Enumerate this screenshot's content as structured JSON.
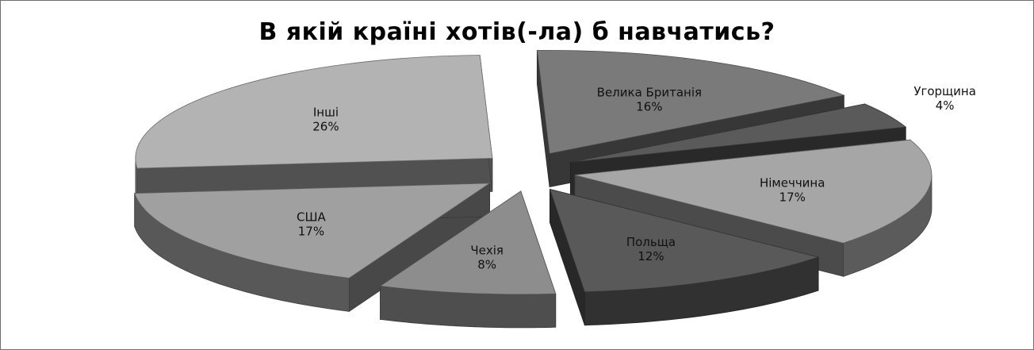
{
  "chart_data": {
    "type": "pie",
    "title": "В якій країні хотів(-ла) б навчатись?",
    "slices": [
      {
        "label": "Велика Британія",
        "value": 16,
        "value_label": "16%",
        "color": "#7a7a7a"
      },
      {
        "label": "Угорщина",
        "value": 4,
        "value_label": "4%",
        "color": "#5a5a5a"
      },
      {
        "label": "Німеччина",
        "value": 17,
        "value_label": "17%",
        "color": "#a6a6a6"
      },
      {
        "label": "Польща",
        "value": 12,
        "value_label": "12%",
        "color": "#595959"
      },
      {
        "label": "Чехія",
        "value": 8,
        "value_label": "8%",
        "color": "#8d8d8d"
      },
      {
        "label": "США",
        "value": 17,
        "value_label": "17%",
        "color": "#a0a0a0"
      },
      {
        "label": "Інші",
        "value": 26,
        "value_label": "26%",
        "color": "#b3b3b3"
      }
    ],
    "exploded": true,
    "three_d": true
  }
}
